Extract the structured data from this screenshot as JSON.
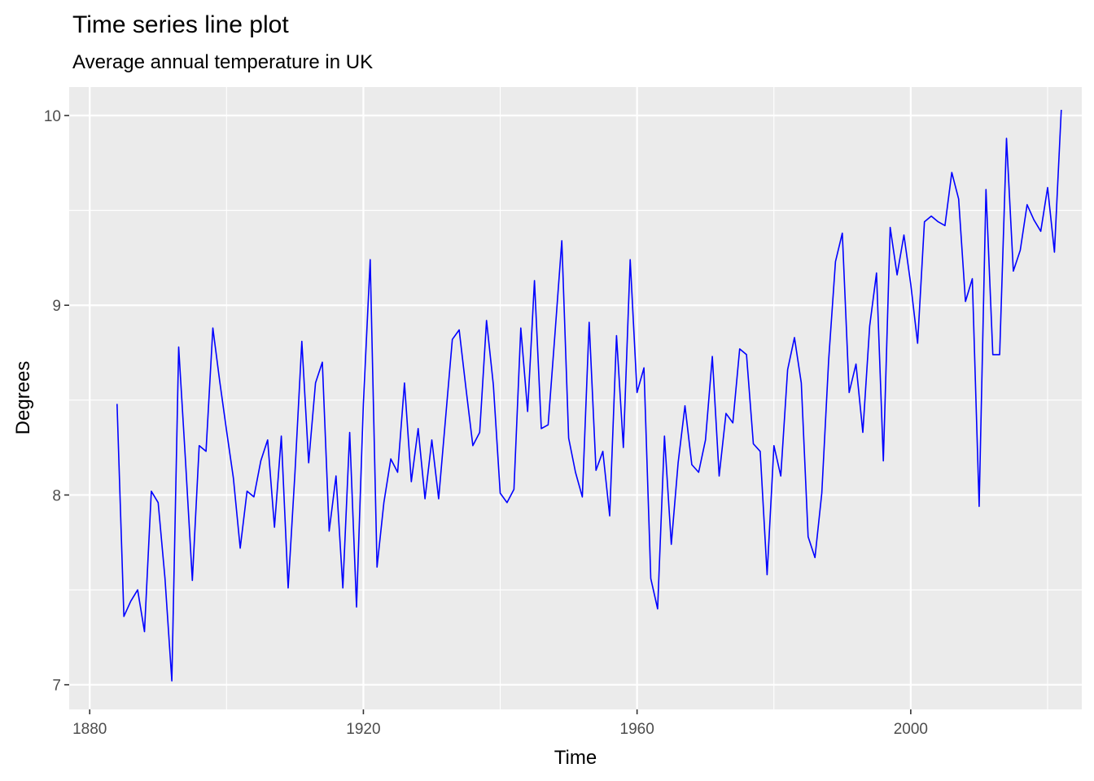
{
  "chart_data": {
    "type": "line",
    "title": "Time series line plot",
    "subtitle": "Average annual temperature in UK",
    "xlabel": "Time",
    "ylabel": "Degrees",
    "xlim": [
      1877,
      2025
    ],
    "ylim": [
      6.87,
      10.15
    ],
    "x_ticks": [
      1880,
      1920,
      1960,
      2000
    ],
    "y_ticks": [
      7,
      8,
      9,
      10
    ],
    "grid": true,
    "line_color": "#0000ff",
    "panel_color": "#ebebeb",
    "x_start": 1884,
    "values": [
      8.48,
      7.36,
      7.44,
      7.5,
      7.28,
      8.02,
      7.96,
      7.56,
      7.02,
      8.78,
      8.18,
      7.55,
      8.26,
      8.23,
      8.88,
      8.6,
      8.34,
      8.09,
      7.72,
      8.02,
      7.99,
      8.18,
      8.29,
      7.83,
      8.31,
      7.51,
      8.12,
      8.81,
      8.17,
      8.59,
      8.7,
      7.81,
      8.1,
      7.51,
      8.33,
      7.41,
      8.48,
      9.24,
      7.62,
      7.96,
      8.19,
      8.12,
      8.59,
      8.07,
      8.35,
      7.98,
      8.29,
      7.98,
      8.4,
      8.82,
      8.87,
      8.56,
      8.26,
      8.33,
      8.92,
      8.58,
      8.01,
      7.96,
      8.03,
      8.88,
      8.44,
      9.13,
      8.35,
      8.37,
      8.85,
      9.34,
      8.3,
      8.12,
      7.99,
      8.91,
      8.13,
      8.23,
      7.89,
      8.84,
      8.25,
      9.24,
      8.54,
      8.67,
      7.56,
      7.4,
      8.31,
      7.74,
      8.17,
      8.47,
      8.16,
      8.12,
      8.29,
      8.73,
      8.1,
      8.43,
      8.38,
      8.77,
      8.74,
      8.27,
      8.23,
      7.58,
      8.26,
      8.1,
      8.66,
      8.83,
      8.59,
      7.78,
      7.67,
      8.01,
      8.71,
      9.23,
      9.38,
      8.54,
      8.69,
      8.33,
      8.89,
      9.17,
      8.18,
      9.41,
      9.16,
      9.37,
      9.11,
      8.8,
      9.44,
      9.47,
      9.44,
      9.42,
      9.7,
      9.56,
      9.02,
      9.14,
      7.94,
      9.61,
      8.74,
      8.74,
      9.88,
      9.18,
      9.29,
      9.53,
      9.45,
      9.39,
      9.62,
      9.28,
      10.03
    ]
  }
}
